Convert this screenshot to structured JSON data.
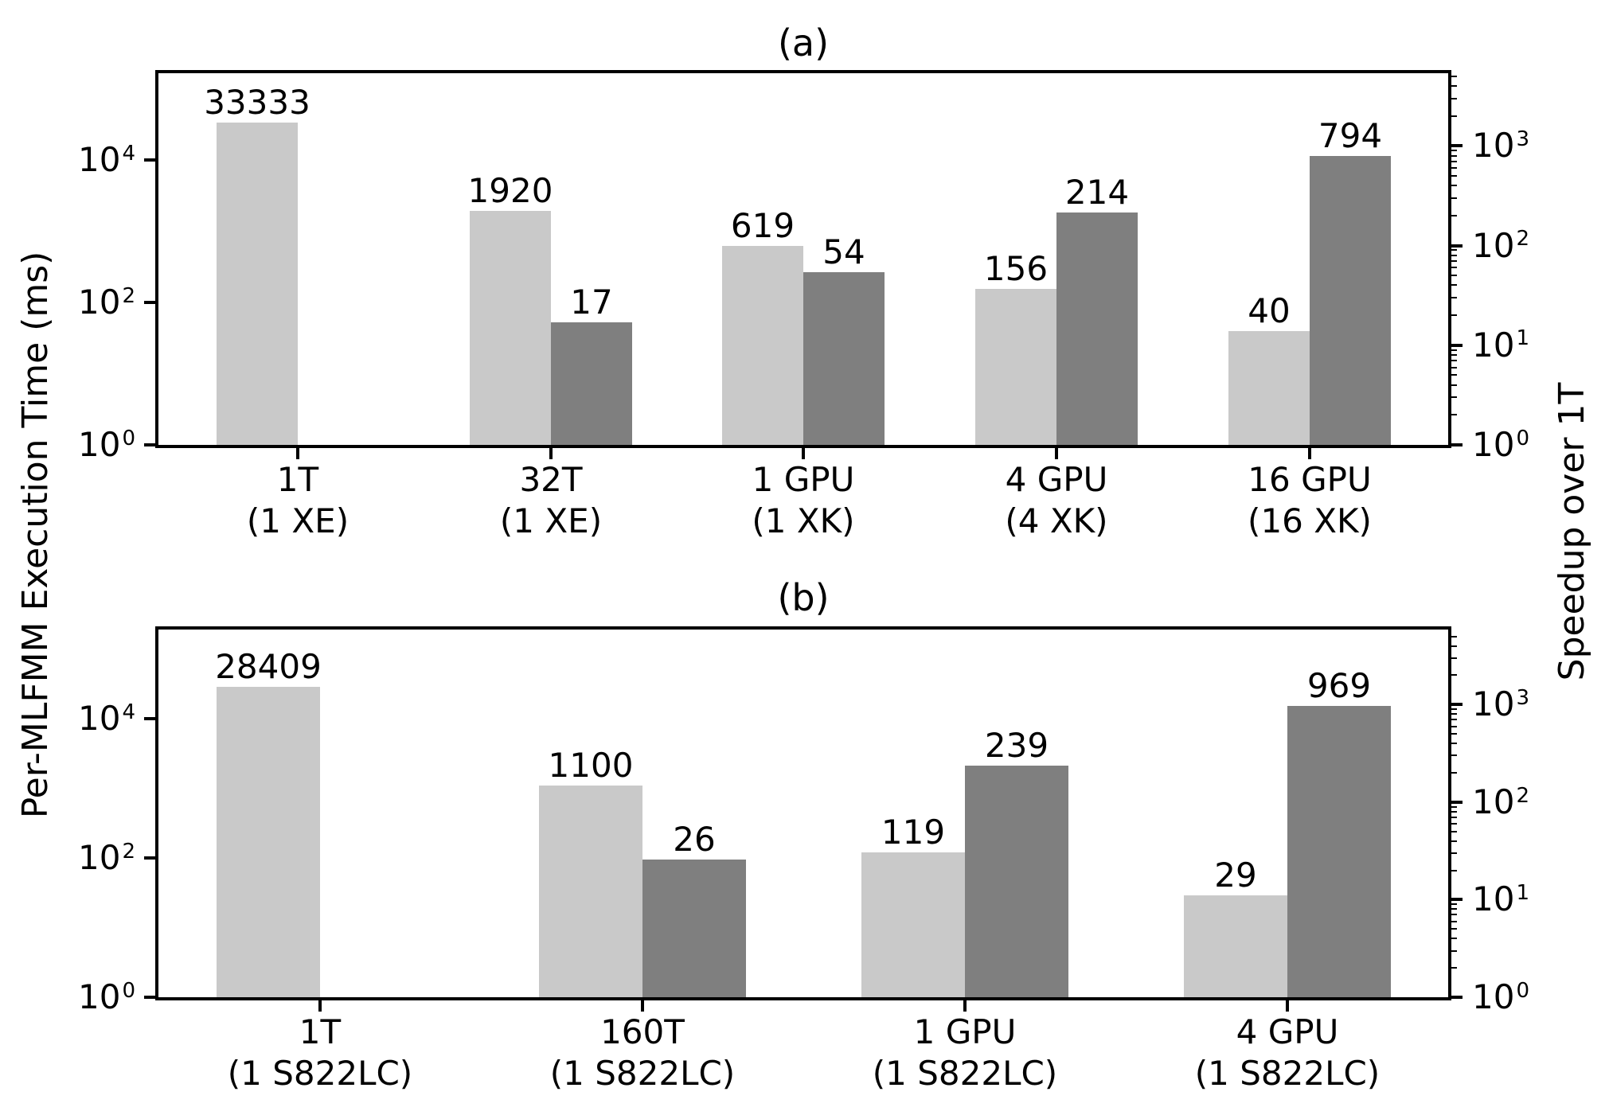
{
  "figure": {
    "log_base": "10",
    "left_axis_label": "Per-MLFMM Execution Time (ms)",
    "right_axis_label": "Speedup over 1T",
    "colors": {
      "time_bar": "#c9c9c9",
      "speedup_bar": "#7f7f7f",
      "axis": "#000000",
      "text": "#000000",
      "background": "#ffffff"
    }
  },
  "chart_data": [
    {
      "id": "a",
      "type": "bar",
      "title": "(a)",
      "categories": [
        [
          "1T",
          "(1 XE)"
        ],
        [
          "32T",
          "(1 XE)"
        ],
        [
          "1 GPU",
          "(1 XK)"
        ],
        [
          "4 GPU",
          "(4 XK)"
        ],
        [
          "16 GPU",
          "(16 XK)"
        ]
      ],
      "series": [
        {
          "name": "Per-MLFMM Execution Time (ms)",
          "axis": "left",
          "values": [
            33333,
            1920,
            619,
            156,
            40
          ]
        },
        {
          "name": "Speedup over 1T",
          "axis": "right",
          "values": [
            null,
            17,
            54,
            214,
            794
          ]
        }
      ],
      "left_axis": {
        "scale": "log",
        "tick_exponents": [
          0,
          2,
          4
        ],
        "range_exponents": [
          0,
          5.22
        ]
      },
      "right_axis": {
        "scale": "log",
        "tick_exponents": [
          0,
          1,
          2,
          3
        ],
        "range_exponents": [
          0,
          3.73
        ]
      },
      "grid": false,
      "legend": false
    },
    {
      "id": "b",
      "type": "bar",
      "title": "(b)",
      "categories": [
        [
          "1T",
          "(1 S822LC)"
        ],
        [
          "160T",
          "(1 S822LC)"
        ],
        [
          "1 GPU",
          "(1 S822LC)"
        ],
        [
          "4 GPU",
          "(1 S822LC)"
        ]
      ],
      "series": [
        {
          "name": "Per-MLFMM Execution Time (ms)",
          "axis": "left",
          "values": [
            28409,
            1100,
            119,
            29
          ]
        },
        {
          "name": "Speedup over 1T",
          "axis": "right",
          "values": [
            null,
            26,
            239,
            969
          ]
        }
      ],
      "left_axis": {
        "scale": "log",
        "tick_exponents": [
          0,
          2,
          4
        ],
        "range_exponents": [
          0,
          5.28
        ]
      },
      "right_axis": {
        "scale": "log",
        "tick_exponents": [
          0,
          1,
          2,
          3
        ],
        "range_exponents": [
          0,
          3.77
        ]
      },
      "grid": false,
      "legend": false
    }
  ]
}
